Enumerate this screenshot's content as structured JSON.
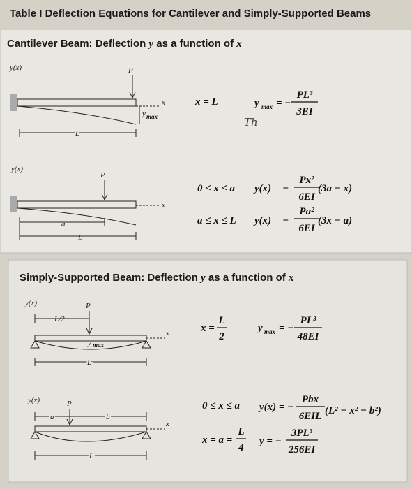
{
  "title": "Table I  Deflection Equations for Cantilever and Simply-Supported Beams",
  "cantilever": {
    "heading": [
      "Cantilever Beam: Deflection ",
      "y",
      " as a function of ",
      "x"
    ],
    "case1": {
      "diagram": {
        "yx": "y(x)",
        "p": "P",
        "x": "x",
        "ymax": "y",
        "max": "max",
        "l": "L"
      },
      "condition": "x = L",
      "lhs": "y",
      "lhs_sub": "max",
      "sign": "= −",
      "num": "PL³",
      "den": "3EI",
      "note": "Th"
    },
    "case2": {
      "diagram": {
        "yx": "y(x)",
        "p": "P",
        "x": "x",
        "a": "a",
        "l": "L"
      },
      "rows": [
        {
          "condition": "0 ≤ x ≤ a",
          "lhs": "y(x) = −",
          "num": "Px²",
          "den": "6EI",
          "tail": "(3a − x)"
        },
        {
          "condition": "a ≤ x ≤ L",
          "lhs": "y(x) = −",
          "num": "Pa²",
          "den": "6EI",
          "tail": "(3x − a)"
        }
      ]
    }
  },
  "simply": {
    "heading": [
      "Simply-Supported Beam: Deflection ",
      "y",
      " as a function of ",
      "x"
    ],
    "case3": {
      "diagram": {
        "yx": "y(x)",
        "half": "L/2",
        "p": "P",
        "x": "x",
        "ymax": "y",
        "max": "max",
        "l": "L"
      },
      "condition": "x =",
      "cond_num": "L",
      "cond_den": "2",
      "lhs": "y",
      "lhs_sub": "max",
      "sign": "= −",
      "num": "PL³",
      "den": "48EI"
    },
    "case4": {
      "diagram": {
        "yx": "y(x)",
        "p": "P",
        "a": "a",
        "b": "b",
        "x": "x",
        "l": "L"
      },
      "row1": {
        "condition": "0 ≤ x ≤ a",
        "lhs": "y(x) = −",
        "num": "Pbx",
        "den": "6EIL",
        "tail": "(L² − x² − b²)"
      },
      "row2": {
        "condition": "x = a =",
        "cond_num": "L",
        "cond_den": "4",
        "lhs": "y = −",
        "num": "3PL³",
        "den": "256EI"
      }
    }
  }
}
